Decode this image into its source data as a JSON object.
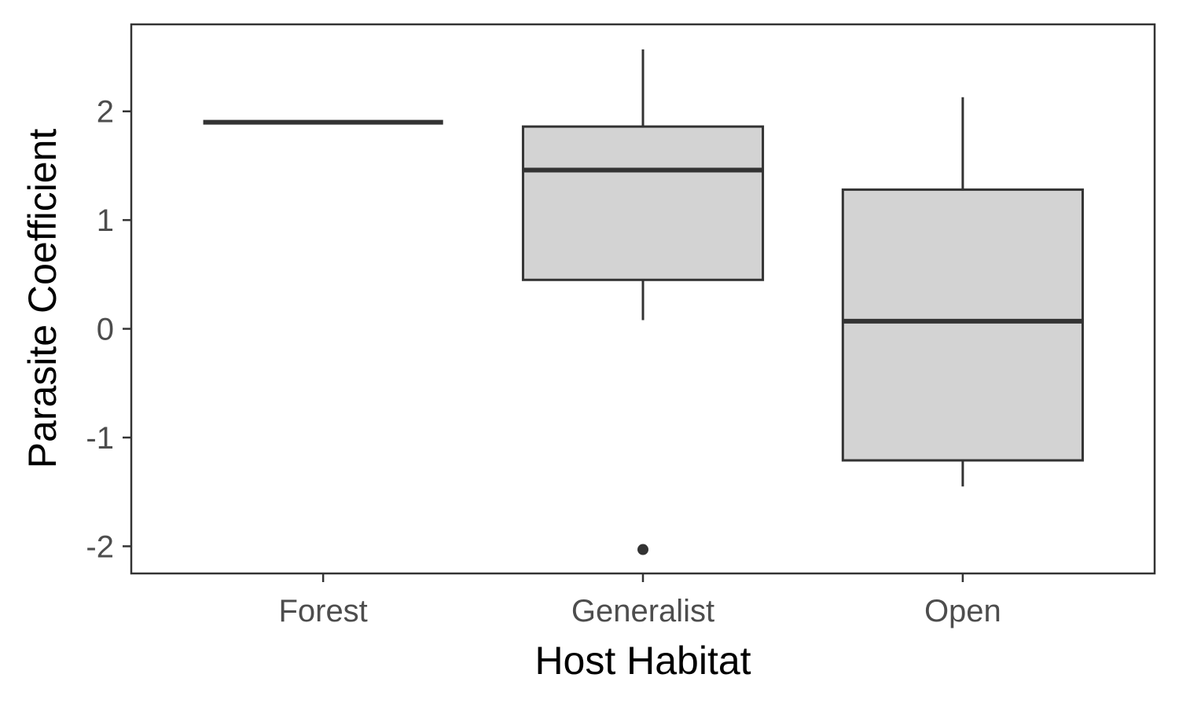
{
  "chart_data": {
    "type": "boxplot",
    "title": "",
    "xlabel": "Host Habitat",
    "ylabel": "Parasite Coefficient",
    "ylim": [
      -2.25,
      2.8
    ],
    "yticks": [
      2,
      1,
      0,
      -1,
      -2
    ],
    "ytick_labels": [
      "2",
      "1",
      "0",
      "-1",
      "-2"
    ],
    "categories": [
      "Forest",
      "Generalist",
      "Open"
    ],
    "boxes": [
      {
        "category": "Forest",
        "whisker_low": 1.9,
        "q1": 1.9,
        "median": 1.9,
        "q3": 1.9,
        "whisker_high": 1.9,
        "outliers": []
      },
      {
        "category": "Generalist",
        "whisker_low": 0.08,
        "q1": 0.45,
        "median": 1.46,
        "q3": 1.86,
        "whisker_high": 2.57,
        "outliers": [
          -2.03
        ]
      },
      {
        "category": "Open",
        "whisker_low": -1.45,
        "q1": -1.21,
        "median": 0.07,
        "q3": 1.28,
        "whisker_high": 2.13,
        "outliers": []
      }
    ],
    "box_fill": "#d3d3d3",
    "line_color": "#333333",
    "grid": false
  }
}
